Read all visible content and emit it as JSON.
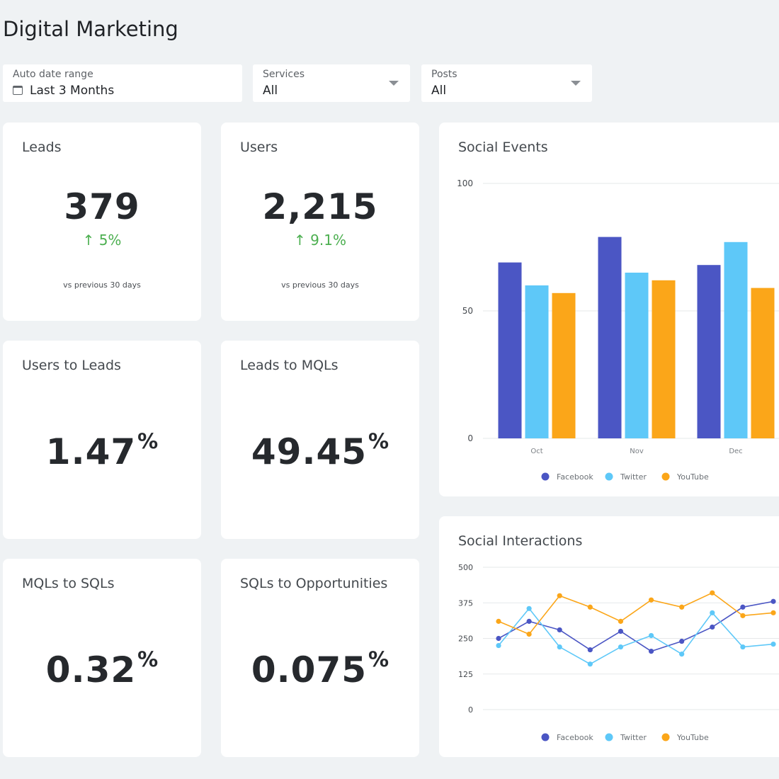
{
  "page": {
    "title": "Digital Marketing"
  },
  "filters": {
    "date": {
      "label": "Auto date range",
      "value": "Last 3 Months",
      "icon": "calendar-icon"
    },
    "services": {
      "label": "Services",
      "value": "All",
      "icon": "chevron-down-icon"
    },
    "posts": {
      "label": "Posts",
      "value": "All",
      "icon": "chevron-down-icon"
    }
  },
  "kpis": {
    "leads": {
      "title": "Leads",
      "value": "379",
      "delta": "↑ 5%",
      "sub": "vs previous 30 days"
    },
    "users": {
      "title": "Users",
      "value": "2,215",
      "delta": "↑ 9.1%",
      "sub": "vs previous 30 days"
    }
  },
  "ratios": {
    "users_to_leads": {
      "title": "Users to Leads",
      "value": "1.47",
      "unit": "%"
    },
    "leads_to_mqls": {
      "title": "Leads to MQLs",
      "value": "49.45",
      "unit": "%"
    },
    "mqls_to_sqls": {
      "title": "MQLs to SQLs",
      "value": "0.32",
      "unit": "%"
    },
    "sqls_to_opportunities": {
      "title": "SQLs to Opportunities",
      "value": "0.075",
      "unit": "%"
    }
  },
  "colors": {
    "positive": "#4caf50",
    "facebook": "#4b56c4",
    "twitter": "#5ec8f8",
    "youtube": "#fba619"
  },
  "chart_data": [
    {
      "type": "bar",
      "title": "Social Events",
      "categories": [
        "Oct",
        "Nov",
        "Dec"
      ],
      "ylim": [
        0,
        100
      ],
      "yticks": [
        0,
        50,
        100
      ],
      "grid": true,
      "legend": "bottom",
      "series": [
        {
          "name": "Facebook",
          "color": "#4b56c4",
          "values": [
            69,
            79,
            68
          ]
        },
        {
          "name": "Twitter",
          "color": "#5ec8f8",
          "values": [
            60,
            65,
            77
          ]
        },
        {
          "name": "YouTube",
          "color": "#fba619",
          "values": [
            57,
            62,
            59
          ]
        }
      ]
    },
    {
      "type": "line",
      "title": "Social Interactions",
      "ylim": [
        0,
        500
      ],
      "yticks": [
        0,
        125,
        250,
        375,
        500
      ],
      "grid": true,
      "legend": "bottom",
      "x": [
        1,
        2,
        3,
        4,
        5,
        6,
        7,
        8,
        9,
        10
      ],
      "series": [
        {
          "name": "Facebook",
          "color": "#4b56c4",
          "values": [
            250,
            310,
            280,
            210,
            275,
            205,
            240,
            290,
            360,
            380
          ]
        },
        {
          "name": "Twitter",
          "color": "#5ec8f8",
          "values": [
            225,
            355,
            220,
            160,
            220,
            260,
            195,
            340,
            220,
            230
          ]
        },
        {
          "name": "YouTube",
          "color": "#fba619",
          "values": [
            310,
            265,
            400,
            360,
            310,
            385,
            360,
            410,
            330,
            340
          ]
        }
      ]
    }
  ]
}
